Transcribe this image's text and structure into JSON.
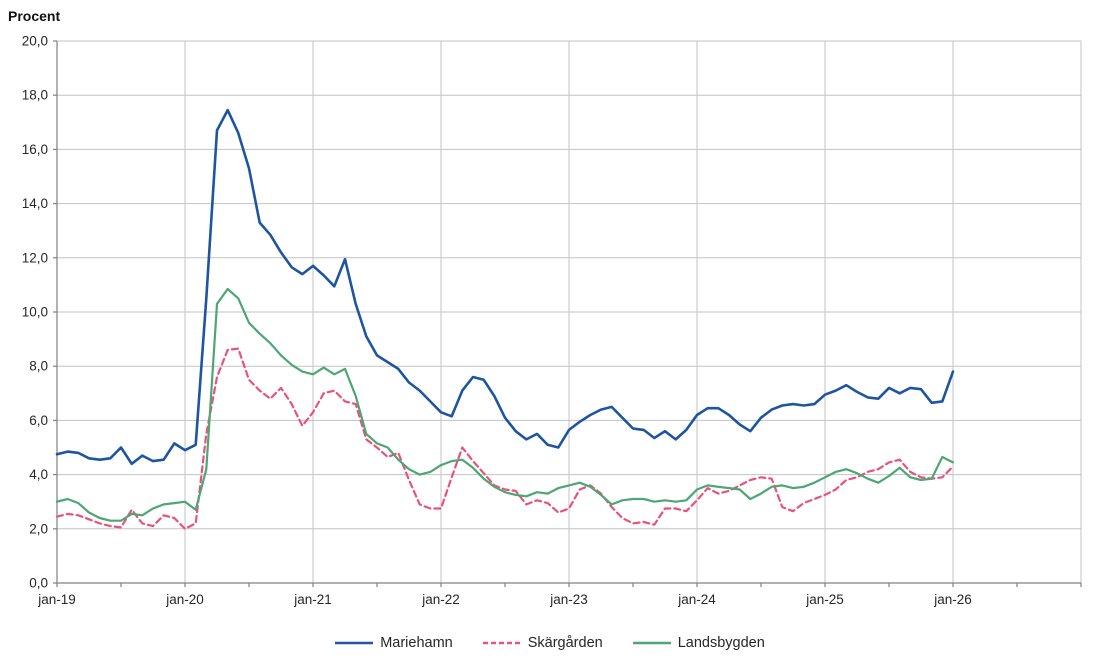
{
  "chart": {
    "title": "Procent"
  },
  "legend": {
    "items": [
      {
        "label": "Mariehamn",
        "color": "#1f55a0",
        "dash": false
      },
      {
        "label": "Skärgården",
        "color": "#e8537c",
        "dash": true
      },
      {
        "label": "Landsbygden",
        "color": "#4da673",
        "dash": false
      }
    ]
  },
  "chart_data": {
    "type": "line",
    "title": "Procent",
    "ylabel": "Procent",
    "xlabel": "",
    "ylim": [
      0,
      20
    ],
    "y_tick_step": 2,
    "grid": true,
    "legend_position": "bottom",
    "x_unit": "month",
    "x_start": "jan-19",
    "x_end": "jan-26",
    "n_points": 85,
    "x_tick_labels": [
      "jan-19",
      "jan-20",
      "jan-21",
      "jan-22",
      "jan-23",
      "jan-24",
      "jan-25",
      "jan-26"
    ],
    "y_tick_labels": [
      "0,0",
      "2,0",
      "4,0",
      "6,0",
      "8,0",
      "10,0",
      "12,0",
      "14,0",
      "16,0",
      "18,0",
      "20,0"
    ],
    "colors": {
      "gridline": "#c3c3c3",
      "axis": "#808080",
      "tick_text": "#262626"
    },
    "series": [
      {
        "name": "Mariehamn",
        "color": "#1f55a0",
        "dash": false,
        "values": [
          4.75,
          4.85,
          4.8,
          4.6,
          4.55,
          4.6,
          5.0,
          4.4,
          4.7,
          4.5,
          4.55,
          5.15,
          4.9,
          5.1,
          10.5,
          16.7,
          17.45,
          16.6,
          15.3,
          13.3,
          12.85,
          12.2,
          11.65,
          11.4,
          11.7,
          11.35,
          10.95,
          11.95,
          10.3,
          9.1,
          8.4,
          8.15,
          7.9,
          7.4,
          7.1,
          6.7,
          6.3,
          6.15,
          7.1,
          7.6,
          7.5,
          6.9,
          6.1,
          5.6,
          5.3,
          5.5,
          5.1,
          5.0,
          5.65,
          5.95,
          6.2,
          6.4,
          6.5,
          6.1,
          5.7,
          5.65,
          5.35,
          5.6,
          5.3,
          5.65,
          6.2,
          6.45,
          6.45,
          6.2,
          5.85,
          5.6,
          6.1,
          6.4,
          6.55,
          6.6,
          6.55,
          6.6,
          6.95,
          7.1,
          7.3,
          7.05,
          6.85,
          6.8,
          7.2,
          7.0,
          7.2,
          7.15,
          6.65,
          6.7,
          7.8
        ]
      },
      {
        "name": "Skärgården",
        "color": "#e8537c",
        "dash": true,
        "values": [
          2.45,
          2.55,
          2.5,
          2.35,
          2.2,
          2.1,
          2.05,
          2.7,
          2.2,
          2.1,
          2.5,
          2.4,
          2.0,
          2.2,
          5.5,
          7.6,
          8.6,
          8.65,
          7.5,
          7.1,
          6.8,
          7.2,
          6.6,
          5.8,
          6.3,
          7.0,
          7.1,
          6.7,
          6.6,
          5.3,
          5.0,
          4.65,
          4.8,
          3.8,
          2.9,
          2.75,
          2.75,
          3.9,
          5.0,
          4.5,
          4.05,
          3.6,
          3.45,
          3.4,
          2.9,
          3.05,
          2.95,
          2.6,
          2.75,
          3.45,
          3.6,
          3.3,
          2.8,
          2.4,
          2.2,
          2.25,
          2.15,
          2.75,
          2.75,
          2.65,
          3.05,
          3.5,
          3.3,
          3.4,
          3.6,
          3.8,
          3.9,
          3.85,
          2.8,
          2.65,
          2.95,
          3.1,
          3.25,
          3.45,
          3.8,
          3.9,
          4.1,
          4.2,
          4.45,
          4.55,
          4.1,
          3.9,
          3.85,
          3.9,
          4.3
        ]
      },
      {
        "name": "Landsbygden",
        "color": "#4da673",
        "dash": false,
        "values": [
          3.0,
          3.1,
          2.95,
          2.6,
          2.4,
          2.3,
          2.3,
          2.55,
          2.5,
          2.75,
          2.9,
          2.95,
          3.0,
          2.7,
          4.2,
          10.3,
          10.85,
          10.5,
          9.6,
          9.2,
          8.85,
          8.4,
          8.05,
          7.8,
          7.7,
          7.95,
          7.7,
          7.9,
          6.9,
          5.5,
          5.15,
          5.0,
          4.55,
          4.2,
          4.0,
          4.1,
          4.35,
          4.5,
          4.55,
          4.25,
          3.85,
          3.55,
          3.35,
          3.25,
          3.2,
          3.35,
          3.3,
          3.5,
          3.6,
          3.7,
          3.55,
          3.25,
          2.9,
          3.05,
          3.1,
          3.1,
          3.0,
          3.05,
          3.0,
          3.05,
          3.45,
          3.6,
          3.55,
          3.5,
          3.45,
          3.1,
          3.3,
          3.55,
          3.6,
          3.5,
          3.55,
          3.7,
          3.9,
          4.1,
          4.2,
          4.05,
          3.85,
          3.7,
          3.95,
          4.25,
          3.9,
          3.8,
          3.85,
          4.65,
          4.45
        ]
      }
    ]
  }
}
